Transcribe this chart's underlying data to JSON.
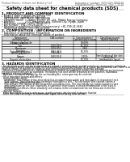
{
  "background_color": "#ffffff",
  "header_left": "Product Name: Lithium Ion Battery Cell",
  "header_right": "Substance number: SDS-049-000018\nEstablishment / Revision: Dec.7.2016",
  "title": "Safety data sheet for chemical products (SDS)",
  "section1_title": "1. PRODUCT AND COMPANY IDENTIFICATION",
  "section1_lines": [
    "• Product name: Lithium Ion Battery Cell",
    "• Product code: Cylindrical-type cell",
    "   SNY18650U, SNY18650L, SNY18650A",
    "• Company name:      Sanyo Electric Co., Ltd., Mobile Energy Company",
    "• Address:             2001 Yamashina-cho, Sumoto-City, Hyogo, Japan",
    "• Telephone number:  +81-799-26-4111",
    "• Fax number:  +81-799-26-4129",
    "• Emergency telephone number (Infochemistry) +81-799-26-3642",
    "   (Night and holiday) +81-799-26-4101"
  ],
  "section2_title": "2. COMPOSITION / INFORMATION ON INGREDIENTS",
  "section2_lines": [
    "• Substance or preparation: Preparation",
    "• Information about the chemical nature of product:"
  ],
  "table_headers": [
    "Component\nchemical name",
    "CAS number",
    "Concentration /\nConcentration range",
    "Classification and\nhazard labeling"
  ],
  "table_sub_header": "Several name",
  "table_rows": [
    [
      "Lithium cobalt oxide\n(LiMn-Co-Ni-O₂)",
      "-",
      "30-60%",
      "-"
    ],
    [
      "Iron",
      "7439-89-6",
      "15-25%",
      "-"
    ],
    [
      "Aluminum",
      "7429-90-5",
      "2-8%",
      "-"
    ],
    [
      "Graphite\n(listed as graphite-1\n(ASTM-graphite))",
      "7782-42-5\n7782-40-3",
      "10-25%",
      "-"
    ],
    [
      "Copper",
      "7440-50-8",
      "5-15%",
      "Sensitization of the skin\ngroup No.2"
    ],
    [
      "Organic electrolyte",
      "-",
      "10-25%",
      "Inflammable liquid"
    ]
  ],
  "section3_title": "3. HAZARDS IDENTIFICATION",
  "section3_para": [
    "  For the battery cell, chemical materials are stored in a hermetically-sealed metal case, designed to withstand",
    "temperatures and pressures-under-normal conditions during normal use. As a result, during normal use, there is no",
    "physical danger of ignition or explosion and thermal-danger of hazardous materials leakage.",
    "  However, if exposed to a fire, added mechanical shocks, decomposed, written electric without any measure,",
    "the gas release vent will be operated. The battery cell case will be breached at fire patterns, hazardous",
    "materials may be released.",
    "  Moreover, if heated strongly by the surrounding fire, some gas may be emitted."
  ],
  "section3_bullets": [
    "• Most important hazard and effects:",
    "  Human health effects:",
    "    Inhalation: The release of the electrolyte has an anaesthesia action and stimulates in respiratory tract.",
    "    Skin contact: The release of the electrolyte stimulates a skin. The electrolyte skin contact causes a",
    "    sore and stimulation on the skin.",
    "    Eye contact: The release of the electrolyte stimulates eyes. The electrolyte eye contact causes a sore",
    "    and stimulation on the eye. Especially, a substance that causes a strong inflammation of the eyes is",
    "    contained.",
    "    Environmental effects: Since a battery cell remains in the environment, do not throw out it into the",
    "    environment.",
    "• Specific hazards:",
    "  If the electrolyte contacts with water, it will generate detrimental hydrogen fluoride.",
    "  Since the used electrolyte is inflammable liquid, do not bring close to fire."
  ]
}
